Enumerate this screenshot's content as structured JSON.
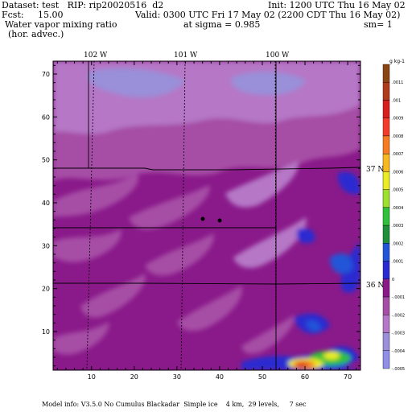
{
  "header": {
    "dataset": "Dataset: test   RIP: rip20020516  d2",
    "init": "Init: 1200 UTC Thu 16 May 02",
    "fcst": "Fcst:     15.00",
    "valid": "Valid: 0300 UTC Fri 17 May 02 (2200 CDT Thu 16 May 02)",
    "field": "Water vapor mixing ratio",
    "sigma": "at sigma = 0.985",
    "sm": "sm= 1",
    "advec": "(hor. advec.)"
  },
  "map": {
    "longitude_labels": [
      "102 W",
      "101 W",
      "100 W"
    ],
    "latitude_labels": [
      "37 N",
      "36 N"
    ],
    "x_ticks": [
      "10",
      "20",
      "30",
      "40",
      "50",
      "60",
      "70"
    ],
    "y_ticks": [
      "10",
      "20",
      "30",
      "40",
      "50",
      "60",
      "70"
    ],
    "x_range": [
      1,
      73
    ],
    "y_range": [
      1,
      73
    ]
  },
  "colorbar": {
    "unit": "g kg-1",
    "labels": [
      ".0011",
      ".001",
      ".0009",
      ".0008",
      ".0007",
      ".0006",
      ".0005",
      ".0004",
      ".0003",
      ".0002",
      ".0001",
      "0",
      "-.0001",
      "-.0002",
      "-.0003",
      "-.0004",
      "-.0005"
    ],
    "colors": [
      "#8b4513",
      "#b03a1a",
      "#d81f1f",
      "#f53b2a",
      "#f77b22",
      "#f7b820",
      "#ecec24",
      "#9ee02c",
      "#2fc13a",
      "#1f8f3a",
      "#2255d8",
      "#2a2ad0",
      "#8a1a8a",
      "#a64da6",
      "#b577c6",
      "#9a8fd9",
      "#8f8fe9"
    ]
  },
  "footer": "Model info: V3.5.0 No Cumulus Blackadar  Simple ice    4 km,  29 levels,     7 sec"
}
